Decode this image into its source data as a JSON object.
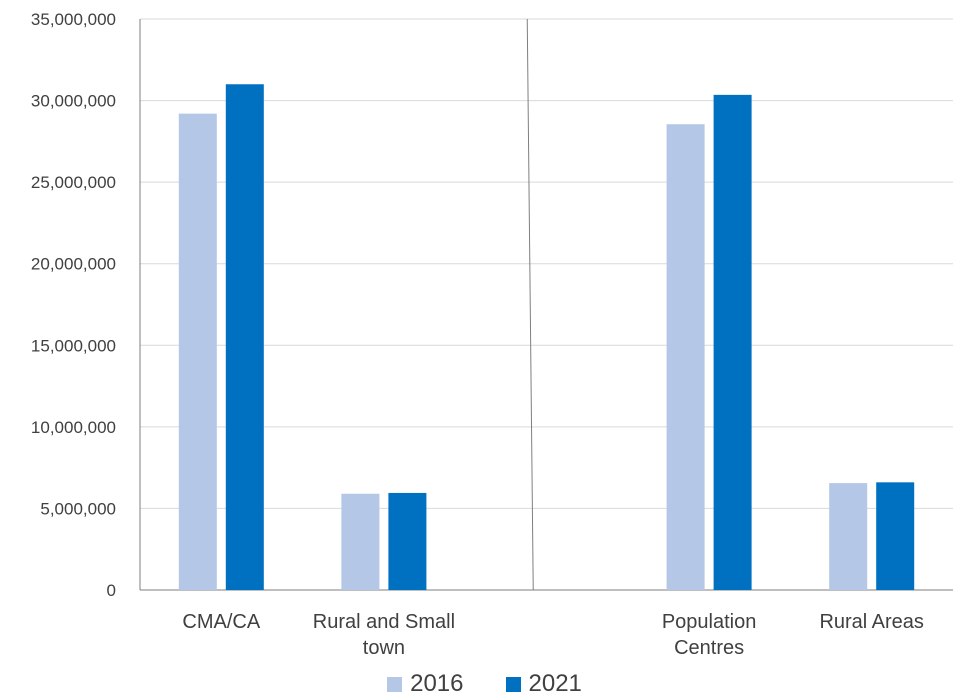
{
  "chart_data": {
    "type": "bar",
    "categories": [
      [
        "CMA/CA"
      ],
      [
        "Rural and Small",
        "town"
      ],
      [],
      [
        "Population",
        "Centres"
      ],
      [
        "Rural Areas"
      ]
    ],
    "series": [
      {
        "name": "2016",
        "color": "#b4c7e7",
        "values": [
          29200000,
          5900000,
          null,
          28550000,
          6550000
        ]
      },
      {
        "name": "2021",
        "color": "#0070c0",
        "values": [
          31000000,
          5950000,
          null,
          30350000,
          6600000
        ]
      }
    ],
    "ylim": [
      0,
      35000000
    ],
    "yticks": [
      "0",
      "5,000,000",
      "10,000,000",
      "15,000,000",
      "20,000,000",
      "25,000,000",
      "30,000,000",
      "35,000,000"
    ],
    "grid": true,
    "legend_position": "bottom",
    "separator_after_category": 1
  }
}
